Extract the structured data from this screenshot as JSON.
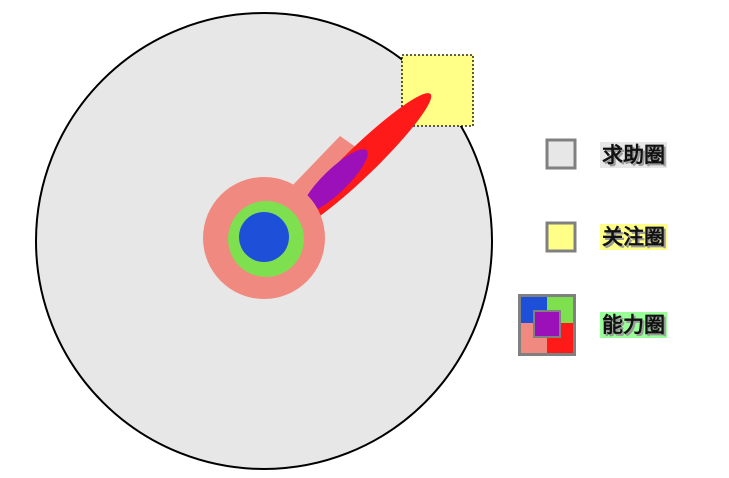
{
  "legend": {
    "help_circle": {
      "label": "求助圈",
      "color": "#e7e7e7"
    },
    "concern_circle": {
      "label": "关注圈",
      "color": "#ffff88"
    },
    "ability_circle": {
      "label": "能力圈",
      "quadrant_colors": [
        "#1e4fd8",
        "#7ee04f",
        "#f08a80",
        "#ff1a1a"
      ],
      "center_color": "#9b10b8"
    }
  },
  "colors": {
    "outer_circle": "#e7e7e7",
    "outer_stroke": "#000000",
    "ring_pink": "#f08a80",
    "ring_green": "#7ee04f",
    "core_blue": "#1e4fd8",
    "arm_red": "#ff1a1a",
    "arm_purple": "#9b10b8",
    "concern_box": "#ffff88"
  }
}
